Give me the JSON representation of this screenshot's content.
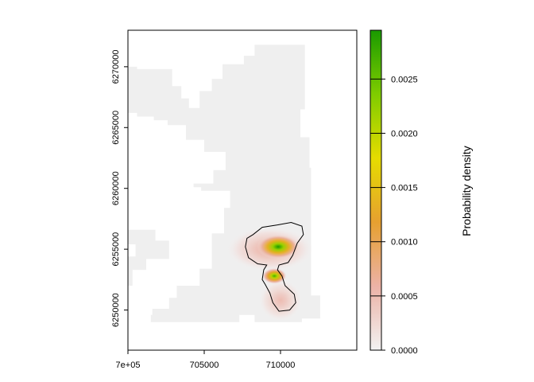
{
  "chart_data": {
    "type": "heatmap",
    "title": "",
    "xlabel": "",
    "ylabel": "",
    "legend_title": "Probability density",
    "xlim": [
      700000,
      715000
    ],
    "ylim": [
      6246700,
      6273000
    ],
    "x_ticks": [
      {
        "value": 700000,
        "label": "7e+05"
      },
      {
        "value": 705000,
        "label": "705000"
      },
      {
        "value": 710000,
        "label": "710000"
      }
    ],
    "y_ticks": [
      {
        "value": 6250000,
        "label": "6250000"
      },
      {
        "value": 6255000,
        "label": "6255000"
      },
      {
        "value": 6260000,
        "label": "6260000"
      },
      {
        "value": 6265000,
        "label": "6265000"
      },
      {
        "value": 6270000,
        "label": "6270000"
      }
    ],
    "colorbar": {
      "min": 0,
      "max": 0.00295,
      "ticks": [
        {
          "value": 0.0,
          "label": "0.0000"
        },
        {
          "value": 0.0005,
          "label": "0.0005"
        },
        {
          "value": 0.001,
          "label": "0.0010"
        },
        {
          "value": 0.0015,
          "label": "0.0015"
        },
        {
          "value": 0.002,
          "label": "0.0020"
        },
        {
          "value": 0.0025,
          "label": "0.0025"
        }
      ],
      "colors": [
        "#f2f2f2",
        "#ecb2a6",
        "#e6a030",
        "#e6dc00",
        "#7fcc00",
        "#1a9a00"
      ]
    },
    "background_color": "#efefef",
    "study_area": [
      [
        698400,
        6271300
      ],
      [
        699400,
        6271300
      ],
      [
        699400,
        6270000
      ],
      [
        700600,
        6270000
      ],
      [
        700600,
        6269800
      ],
      [
        702900,
        6269800
      ],
      [
        702900,
        6268400
      ],
      [
        703500,
        6268400
      ],
      [
        703500,
        6267400
      ],
      [
        704000,
        6267400
      ],
      [
        704000,
        6266600
      ],
      [
        704700,
        6266600
      ],
      [
        704700,
        6268000
      ],
      [
        705500,
        6268000
      ],
      [
        705500,
        6269000
      ],
      [
        706200,
        6269000
      ],
      [
        706200,
        6270200
      ],
      [
        707600,
        6270200
      ],
      [
        707600,
        6270900
      ],
      [
        708300,
        6270900
      ],
      [
        708300,
        6271800
      ],
      [
        711600,
        6271800
      ],
      [
        711600,
        6266500
      ],
      [
        711300,
        6266500
      ],
      [
        711300,
        6264200
      ],
      [
        711900,
        6264200
      ],
      [
        711900,
        6261700
      ],
      [
        712000,
        6261700
      ],
      [
        712000,
        6251200
      ],
      [
        712600,
        6251200
      ],
      [
        712600,
        6249300
      ],
      [
        711400,
        6249300
      ],
      [
        711400,
        6249000
      ],
      [
        708300,
        6249000
      ],
      [
        708300,
        6249600
      ],
      [
        707300,
        6249600
      ],
      [
        707300,
        6249000
      ],
      [
        701500,
        6249000
      ],
      [
        701500,
        6249600
      ],
      [
        701600,
        6249600
      ],
      [
        701600,
        6250100
      ],
      [
        702700,
        6250100
      ],
      [
        702700,
        6251000
      ],
      [
        703200,
        6251000
      ],
      [
        703200,
        6252000
      ],
      [
        704700,
        6252000
      ],
      [
        704700,
        6253400
      ],
      [
        705500,
        6253400
      ],
      [
        705500,
        6256300
      ],
      [
        706300,
        6256300
      ],
      [
        706300,
        6258400
      ],
      [
        706700,
        6258400
      ],
      [
        706700,
        6259800
      ],
      [
        704800,
        6259800
      ],
      [
        704800,
        6260100
      ],
      [
        704300,
        6260100
      ],
      [
        704300,
        6260400
      ],
      [
        705600,
        6260400
      ],
      [
        705600,
        6261500
      ],
      [
        706400,
        6261500
      ],
      [
        706400,
        6263000
      ],
      [
        705000,
        6263000
      ],
      [
        705000,
        6264000
      ],
      [
        703800,
        6264000
      ],
      [
        703800,
        6265200
      ],
      [
        702600,
        6265200
      ],
      [
        702600,
        6265600
      ],
      [
        701700,
        6265600
      ],
      [
        701700,
        6265900
      ],
      [
        700600,
        6265900
      ],
      [
        700600,
        6266200
      ],
      [
        699600,
        6266200
      ],
      [
        699600,
        6267000
      ],
      [
        699100,
        6267000
      ],
      [
        699100,
        6268500
      ],
      [
        698600,
        6268500
      ],
      [
        698600,
        6269900
      ],
      [
        698400,
        6269900
      ]
    ],
    "study_area_west_patch": [
      [
        699400,
        6256600
      ],
      [
        701800,
        6256600
      ],
      [
        701800,
        6255700
      ],
      [
        702700,
        6255700
      ],
      [
        702700,
        6254200
      ],
      [
        701200,
        6254200
      ],
      [
        701200,
        6253300
      ],
      [
        700300,
        6253300
      ],
      [
        700300,
        6252000
      ],
      [
        699500,
        6252000
      ],
      [
        699500,
        6253000
      ],
      [
        699900,
        6253000
      ],
      [
        699900,
        6254400
      ],
      [
        700500,
        6254400
      ],
      [
        700500,
        6255400
      ],
      [
        699400,
        6255400
      ]
    ],
    "hotspots": [
      {
        "x": 709850,
        "y": 6255200,
        "peak": 0.00295,
        "sx": 700,
        "sy": 500
      },
      {
        "x": 709600,
        "y": 6252800,
        "peak": 0.0027,
        "sx": 400,
        "sy": 330
      },
      {
        "x": 709300,
        "y": 6255000,
        "peak": 0.00065,
        "sx": 1400,
        "sy": 900
      },
      {
        "x": 710000,
        "y": 6250800,
        "peak": 0.0005,
        "sx": 700,
        "sy": 850
      }
    ],
    "contour_outline": [
      [
        708200,
        6256200
      ],
      [
        708800,
        6256800
      ],
      [
        709800,
        6257000
      ],
      [
        710700,
        6257200
      ],
      [
        711400,
        6256900
      ],
      [
        711500,
        6256200
      ],
      [
        711100,
        6255500
      ],
      [
        710800,
        6254500
      ],
      [
        710500,
        6253900
      ],
      [
        709900,
        6253700
      ],
      [
        709800,
        6253300
      ],
      [
        710100,
        6252800
      ],
      [
        710300,
        6252000
      ],
      [
        710900,
        6251300
      ],
      [
        711000,
        6250600
      ],
      [
        710600,
        6250000
      ],
      [
        709900,
        6249900
      ],
      [
        709500,
        6250600
      ],
      [
        709300,
        6251400
      ],
      [
        709000,
        6252100
      ],
      [
        708800,
        6252500
      ],
      [
        708900,
        6253300
      ],
      [
        709100,
        6253700
      ],
      [
        708500,
        6253800
      ],
      [
        707900,
        6254300
      ],
      [
        707700,
        6255200
      ],
      [
        707800,
        6255900
      ]
    ]
  }
}
